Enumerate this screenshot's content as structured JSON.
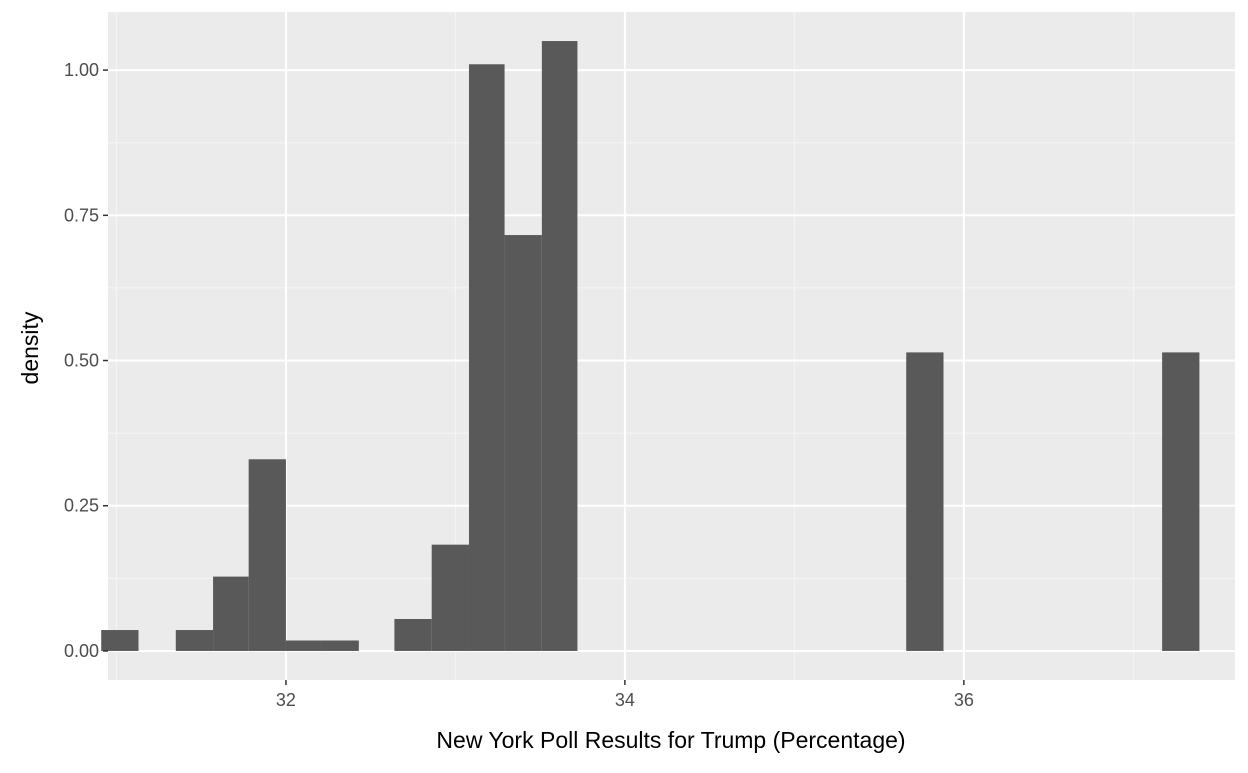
{
  "chart_data": {
    "type": "bar",
    "subtype": "histogram",
    "title": "",
    "xlabel": "New York Poll Results for Trump (Percentage)",
    "ylabel": "density",
    "xlim": [
      30.95,
      37.6
    ],
    "ylim": [
      -0.05,
      1.1
    ],
    "x_ticks": [
      {
        "value": 32,
        "label": "32"
      },
      {
        "value": 34,
        "label": "34"
      },
      {
        "value": 36,
        "label": "36"
      }
    ],
    "y_ticks": [
      {
        "value": 0.0,
        "label": "0.00"
      },
      {
        "value": 0.25,
        "label": "0.25"
      },
      {
        "value": 0.5,
        "label": "0.50"
      },
      {
        "value": 0.75,
        "label": "0.75"
      },
      {
        "value": 1.0,
        "label": "1.00"
      }
    ],
    "bins": [
      {
        "x0": 30.91,
        "x1": 31.13,
        "density": 0.036
      },
      {
        "x0": 31.35,
        "x1": 31.57,
        "density": 0.036
      },
      {
        "x0": 31.57,
        "x1": 31.78,
        "density": 0.128
      },
      {
        "x0": 31.78,
        "x1": 32.0,
        "density": 0.33
      },
      {
        "x0": 32.0,
        "x1": 32.21,
        "density": 0.018
      },
      {
        "x0": 32.21,
        "x1": 32.43,
        "density": 0.018
      },
      {
        "x0": 32.64,
        "x1": 32.86,
        "density": 0.055
      },
      {
        "x0": 32.86,
        "x1": 33.08,
        "density": 0.183
      },
      {
        "x0": 33.08,
        "x1": 33.29,
        "density": 1.01
      },
      {
        "x0": 33.29,
        "x1": 33.51,
        "density": 0.716
      },
      {
        "x0": 33.51,
        "x1": 33.72,
        "density": 1.05
      },
      {
        "x0": 35.66,
        "x1": 35.88,
        "density": 0.514
      },
      {
        "x0": 37.17,
        "x1": 37.39,
        "density": 0.514
      }
    ],
    "grid": true,
    "legend": "none",
    "colors": {
      "panel_background": "#ebebeb",
      "grid_major": "#ffffff",
      "grid_minor": "#f5f5f5",
      "bar_fill": "#595959"
    }
  }
}
